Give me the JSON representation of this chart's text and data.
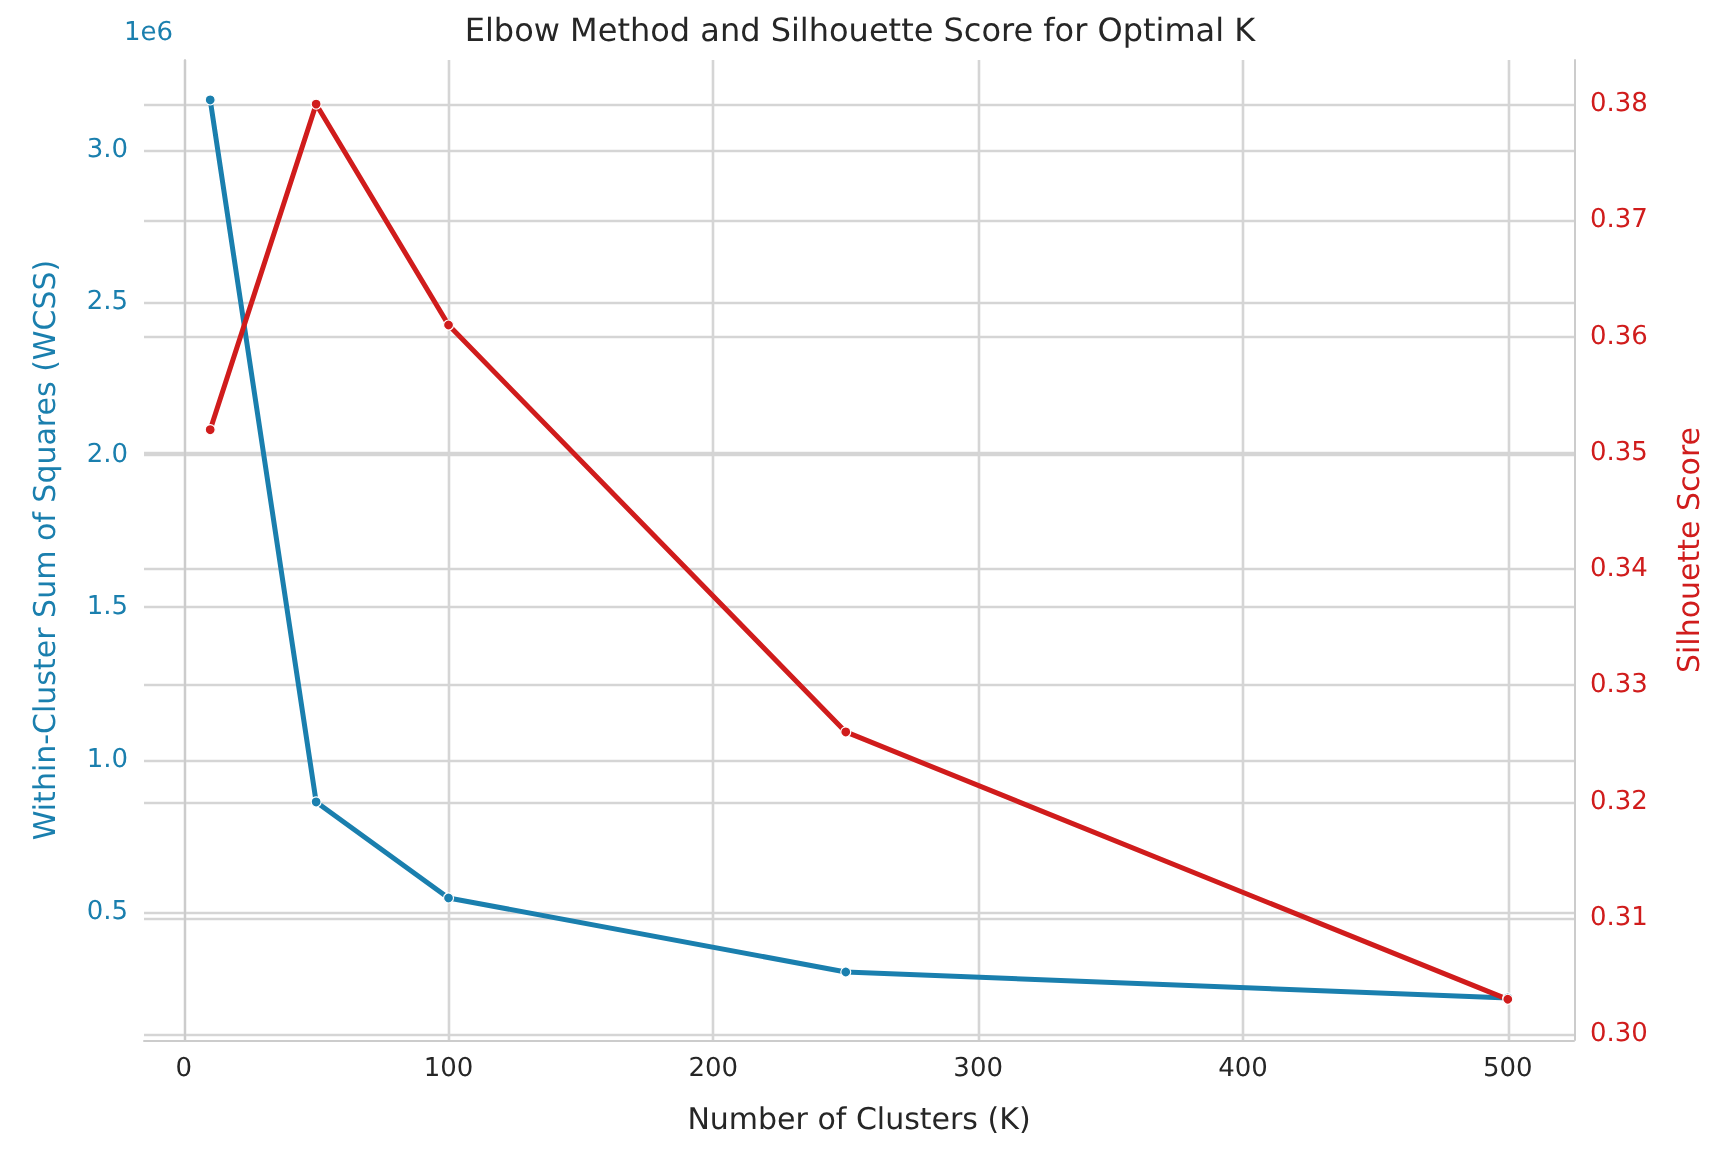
{
  "chart_data": {
    "type": "line",
    "title": "Elbow Method and Silhouette Score for Optimal K",
    "xlabel": "Number of Clusters (K)",
    "ylabel": "Within-Cluster Sum of Squares (WCSS)",
    "y2label": "Silhouette Score",
    "x": [
      10,
      50,
      100,
      250,
      500
    ],
    "series": [
      {
        "color": "#1a7fae",
        "values": [
          3.164,
          0.861,
          0.546,
          0.303,
          0.218
        ]
      },
      {
        "color": "#d01c1c",
        "axis": "y2",
        "values": [
          0.352,
          0.38,
          0.361,
          0.326,
          0.303
        ]
      }
    ],
    "xlim": [
      -15,
      525
    ],
    "xticks": [
      0,
      100,
      200,
      300,
      400,
      500
    ],
    "ylim": [
      0.08,
      3.295
    ],
    "yticks": [
      0.5,
      {
        "value": 1,
        "label": "1.0"
      },
      1.5,
      {
        "value": 2,
        "label": "2.0"
      },
      2.5,
      {
        "value": 3,
        "label": "3.0"
      }
    ],
    "y2lim": [
      0.2995,
      0.3838
    ],
    "y2ticks": [
      {
        "value": 0.3,
        "label": "0.30"
      },
      0.31,
      0.32,
      0.33,
      0.34,
      0.35,
      0.36,
      0.37,
      0.38
    ],
    "annotations": [
      "1e6"
    ],
    "grid": true,
    "marker": "circle",
    "line_style": "solid"
  }
}
